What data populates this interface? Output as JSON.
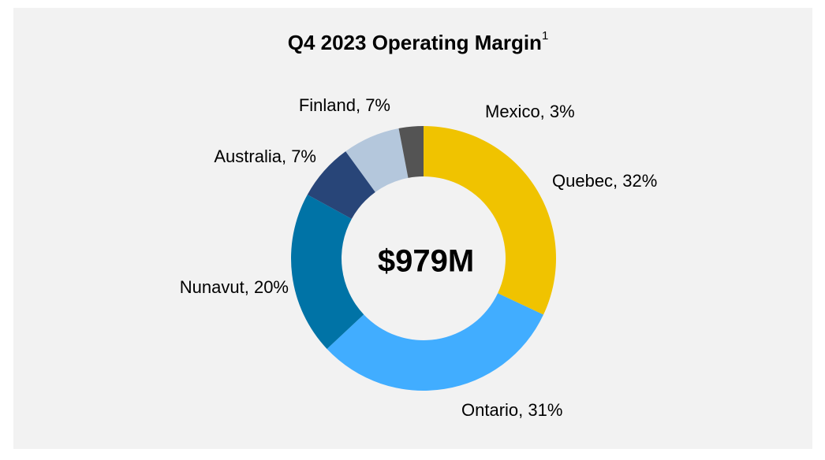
{
  "chart_data": {
    "type": "donut",
    "title": "Q4 2023 Operating Margin",
    "title_note": "1",
    "center_label": "$979M",
    "values": [
      32,
      31,
      20,
      7,
      7,
      3
    ],
    "value_labels": [
      "Quebec, 32%",
      "Ontario, 31%",
      "Nunavut, 20%",
      "Australia, 7%",
      "Finland, 7%",
      "Mexico, 3%"
    ],
    "colors": [
      "#f0c300",
      "#41adff",
      "#0073a6",
      "#284578",
      "#b4c7dc",
      "#545454"
    ]
  }
}
